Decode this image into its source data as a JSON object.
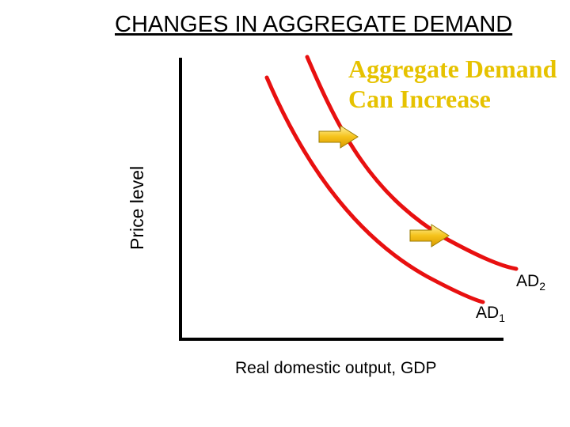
{
  "title": "CHANGES IN AGGREGATE DEMAND",
  "callout": {
    "line1": "Aggregate Demand",
    "line2": "Can Increase"
  },
  "axes": {
    "ylabel": "Price level",
    "xlabel": "Real domestic output, GDP"
  },
  "curves": [
    {
      "label": "AD",
      "subscript": "1"
    },
    {
      "label": "AD",
      "subscript": "2"
    }
  ],
  "colors": {
    "curve": "#e81010",
    "callout": "#e6c200",
    "arrow": "#f5c21b",
    "axis": "#000000"
  }
}
